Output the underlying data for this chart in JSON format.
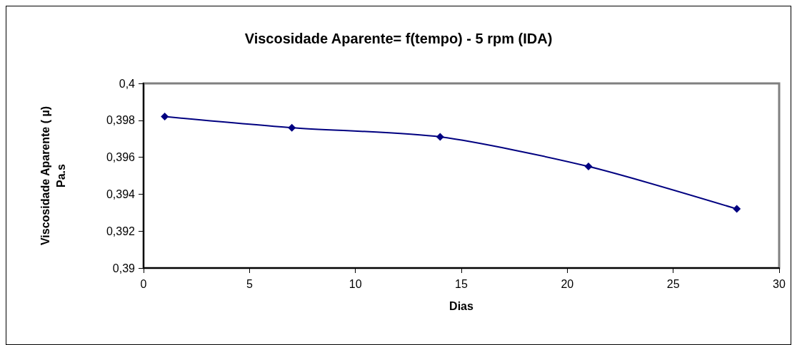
{
  "chart_data": {
    "type": "line",
    "title": "Viscosidade Aparente= f(tempo) - 5 rpm (IDA)",
    "xlabel": "Dias",
    "ylabel": "Viscosidade Aparente ( µ)\nPa.s",
    "x": [
      1,
      7,
      14,
      21,
      28
    ],
    "series": [
      {
        "color": "#000080",
        "values": [
          0.3982,
          0.3976,
          0.3971,
          0.3955,
          0.3932
        ]
      }
    ],
    "xlim": [
      0,
      30
    ],
    "xticks": [
      0,
      5,
      10,
      15,
      20,
      25,
      30
    ],
    "ylim": [
      0.39,
      0.4
    ],
    "yticks": [
      {
        "value": 0.39,
        "label": "0,39"
      },
      {
        "value": 0.392,
        "label": "0,392"
      },
      {
        "value": 0.394,
        "label": "0,394"
      },
      {
        "value": 0.396,
        "label": "0,396"
      },
      {
        "value": 0.398,
        "label": "0,398"
      },
      {
        "value": 0.4,
        "label": "0,4"
      }
    ],
    "grid": false,
    "marker": "diamond",
    "line_style": "solid"
  }
}
